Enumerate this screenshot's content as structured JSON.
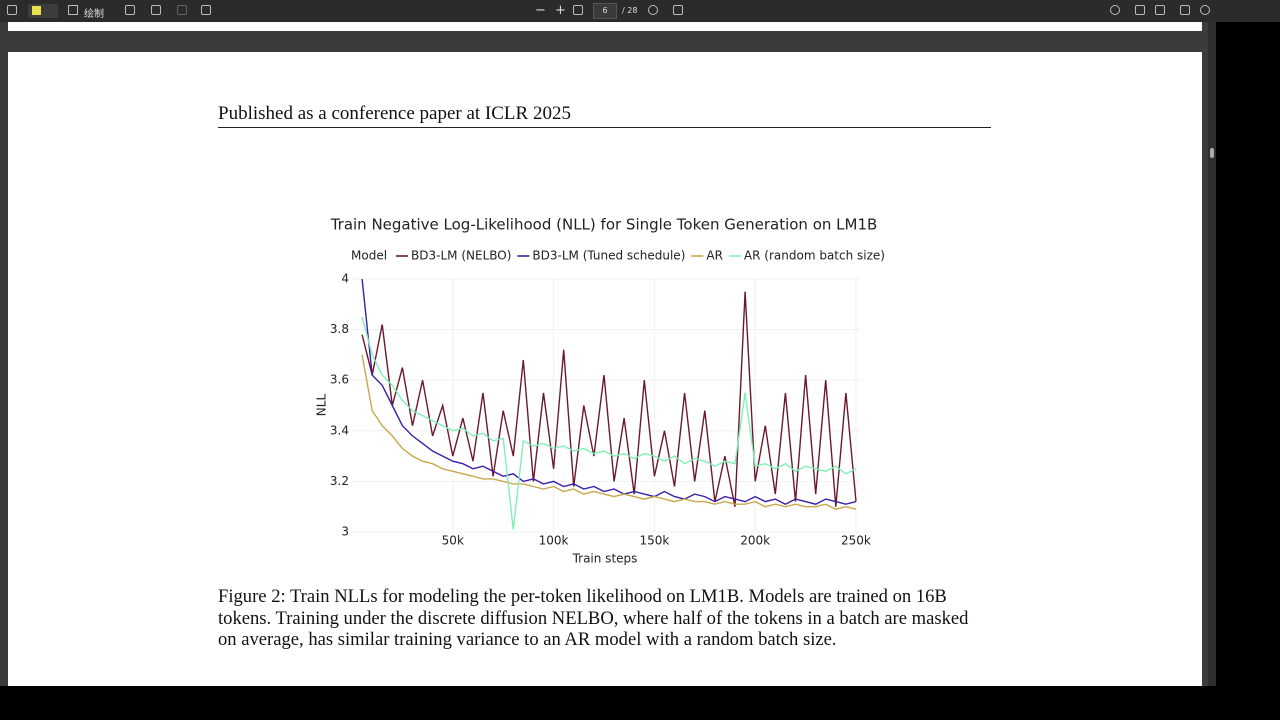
{
  "toolbar": {
    "draw": "绘制",
    "page": "6",
    "page_count": "/ 28"
  },
  "header": "Published as a conference paper at ICLR 2025",
  "caption": "Figure 2: Train NLLs for modeling the per-token likelihood on LM1B. Models are trained on 16B tokens. Training under the discrete diffusion NELBO, where half of the tokens in a batch are masked on average, has similar training variance to an AR model with a random batch size.",
  "chart_data": {
    "type": "line",
    "title": "Train Negative Log-Likelihood (NLL) for Single Token Generation on LM1B",
    "x_label": "Train steps",
    "y_label": "NLL",
    "legend_title": "Model",
    "grid": true,
    "xlim": [
      0,
      252000
    ],
    "ylim": [
      3,
      4
    ],
    "xticks": [
      {
        "value": 50000,
        "label": "50k"
      },
      {
        "value": 100000,
        "label": "100k"
      },
      {
        "value": 150000,
        "label": "150k"
      },
      {
        "value": 200000,
        "label": "200k"
      },
      {
        "value": 250000,
        "label": "250k"
      }
    ],
    "yticks": [
      3,
      3.2,
      3.4,
      3.6,
      3.8,
      4
    ],
    "x": [
      5000,
      10000,
      15000,
      20000,
      25000,
      30000,
      35000,
      40000,
      45000,
      50000,
      55000,
      60000,
      65000,
      70000,
      75000,
      80000,
      85000,
      90000,
      95000,
      100000,
      105000,
      110000,
      115000,
      120000,
      125000,
      130000,
      135000,
      140000,
      145000,
      150000,
      155000,
      160000,
      165000,
      170000,
      175000,
      180000,
      185000,
      190000,
      195000,
      200000,
      205000,
      210000,
      215000,
      220000,
      225000,
      230000,
      235000,
      240000,
      245000,
      250000
    ],
    "series": [
      {
        "name": "BD3-LM (NELBO)",
        "color": "#6b1a2a",
        "values": [
          3.78,
          3.62,
          3.82,
          3.5,
          3.65,
          3.42,
          3.6,
          3.38,
          3.5,
          3.3,
          3.45,
          3.28,
          3.55,
          3.22,
          3.48,
          3.3,
          3.68,
          3.2,
          3.55,
          3.25,
          3.72,
          3.18,
          3.5,
          3.3,
          3.62,
          3.2,
          3.45,
          3.15,
          3.6,
          3.22,
          3.4,
          3.18,
          3.55,
          3.2,
          3.48,
          3.12,
          3.3,
          3.1,
          3.95,
          3.2,
          3.42,
          3.15,
          3.55,
          3.12,
          3.62,
          3.15,
          3.6,
          3.1,
          3.55,
          3.12
        ]
      },
      {
        "name": "BD3-LM (Tuned schedule)",
        "color": "#3a1fa8",
        "values": [
          4,
          3.62,
          3.58,
          3.5,
          3.42,
          3.38,
          3.35,
          3.32,
          3.3,
          3.28,
          3.27,
          3.25,
          3.26,
          3.24,
          3.22,
          3.23,
          3.2,
          3.21,
          3.19,
          3.2,
          3.18,
          3.19,
          3.17,
          3.18,
          3.16,
          3.17,
          3.15,
          3.16,
          3.15,
          3.14,
          3.16,
          3.14,
          3.13,
          3.15,
          3.14,
          3.12,
          3.14,
          3.13,
          3.12,
          3.14,
          3.12,
          3.13,
          3.11,
          3.13,
          3.12,
          3.11,
          3.13,
          3.12,
          3.11,
          3.12
        ]
      },
      {
        "name": "AR",
        "color": "#c8a84b",
        "values": [
          3.7,
          3.48,
          3.42,
          3.38,
          3.33,
          3.3,
          3.28,
          3.27,
          3.25,
          3.24,
          3.23,
          3.22,
          3.21,
          3.21,
          3.2,
          3.19,
          3.19,
          3.18,
          3.17,
          3.18,
          3.16,
          3.17,
          3.15,
          3.16,
          3.15,
          3.14,
          3.15,
          3.14,
          3.13,
          3.14,
          3.13,
          3.12,
          3.13,
          3.12,
          3.12,
          3.11,
          3.12,
          3.11,
          3.11,
          3.12,
          3.1,
          3.11,
          3.1,
          3.11,
          3.1,
          3.1,
          3.11,
          3.09,
          3.1,
          3.09
        ]
      },
      {
        "name": "AR (random batch size)",
        "color": "#7ff0b8",
        "values": [
          3.85,
          3.7,
          3.62,
          3.58,
          3.52,
          3.48,
          3.46,
          3.44,
          3.42,
          3.4,
          3.41,
          3.38,
          3.39,
          3.36,
          3.37,
          3.01,
          3.36,
          3.34,
          3.35,
          3.33,
          3.34,
          3.32,
          3.33,
          3.31,
          3.32,
          3.3,
          3.31,
          3.29,
          3.31,
          3.3,
          3.28,
          3.3,
          3.27,
          3.29,
          3.28,
          3.26,
          3.28,
          3.27,
          3.55,
          3.26,
          3.27,
          3.25,
          3.27,
          3.24,
          3.26,
          3.25,
          3.24,
          3.26,
          3.23,
          3.25
        ]
      }
    ]
  }
}
